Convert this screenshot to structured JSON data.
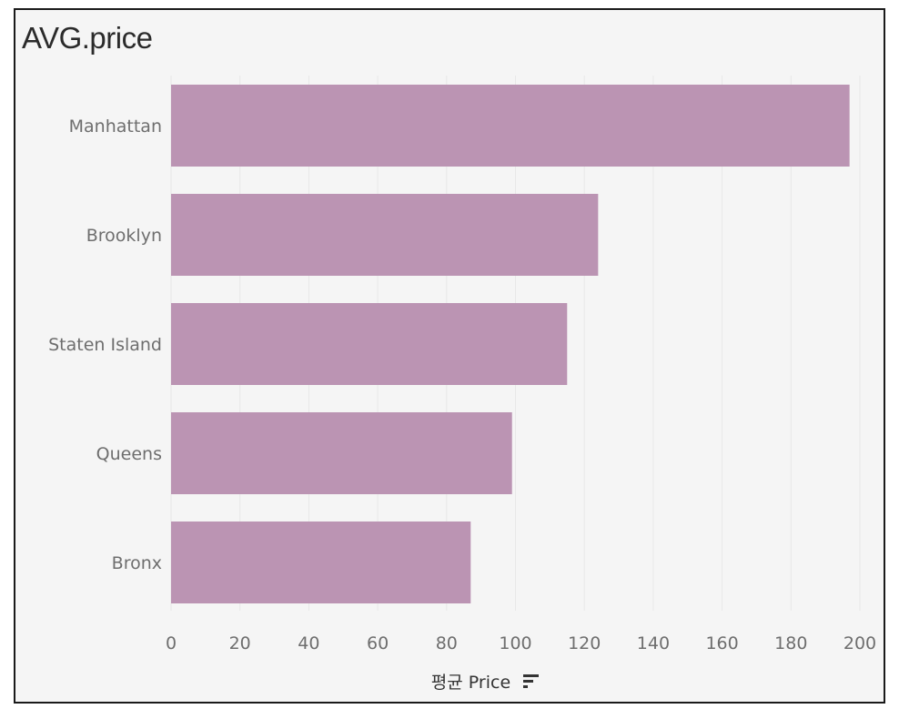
{
  "title": "AVG.price",
  "colors": {
    "bar": "#bb94b3",
    "grid": "#e8e8e8",
    "background": "#f5f5f5"
  },
  "sort_icon": "sort-descending-icon",
  "chart_data": {
    "type": "bar",
    "orientation": "horizontal",
    "title": "AVG.price",
    "categories": [
      "Manhattan",
      "Brooklyn",
      "Staten Island",
      "Queens",
      "Bronx"
    ],
    "values": [
      197,
      124,
      115,
      99,
      87
    ],
    "xlabel": "평균 Price",
    "ylabel": "",
    "xlim": [
      0,
      200
    ],
    "xticks": [
      0,
      20,
      40,
      60,
      80,
      100,
      120,
      140,
      160,
      180,
      200
    ],
    "grid": true,
    "legend": "none"
  }
}
